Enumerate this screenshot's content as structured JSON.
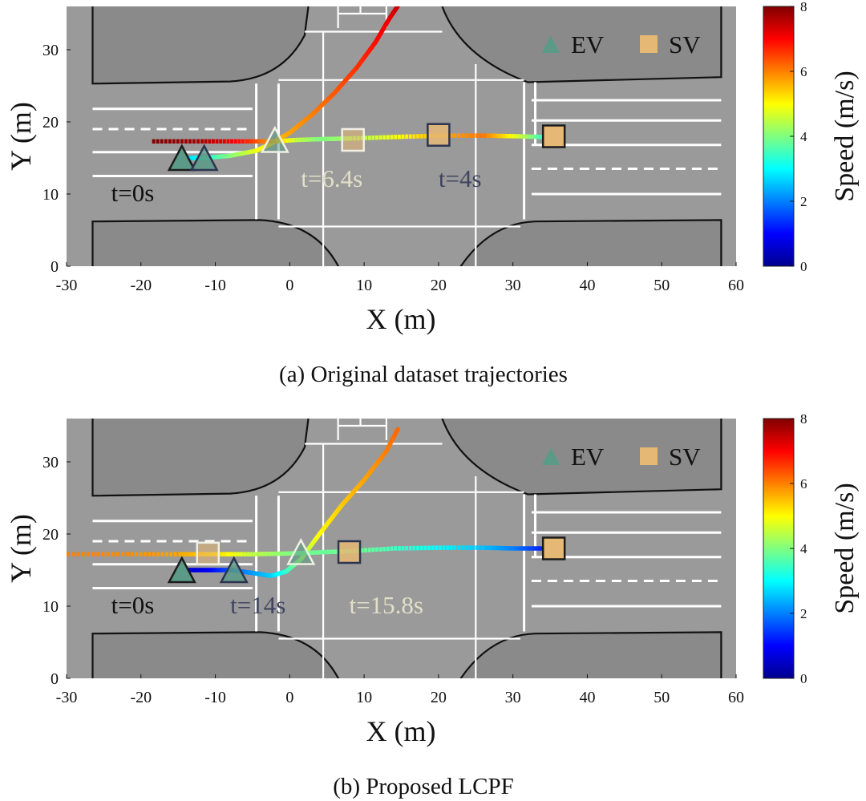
{
  "colors": {
    "road_bg": "#9a9a9a",
    "lane_line": "#ffffff",
    "curb_line": "#111111",
    "ev_marker": "#5b9a86",
    "sv_marker": "#e5b875",
    "label_dark": "#3f4560",
    "label_light": "#e2e0c8",
    "label_black": "#111111"
  },
  "colorbar": {
    "label": "Speed (m/s)",
    "min": 0,
    "max": 8,
    "ticks": [
      "0",
      "2",
      "4",
      "6",
      "8"
    ]
  },
  "chart_data": [
    {
      "id": "a",
      "type": "scatter",
      "caption": "(a)  Original dataset trajectories",
      "xlabel": "X (m)",
      "ylabel": "Y (m)",
      "xlim": [
        -30,
        60
      ],
      "ylim": [
        0,
        36
      ],
      "xticks": [
        "-30",
        "-20",
        "-10",
        "0",
        "10",
        "20",
        "30",
        "40",
        "50",
        "60"
      ],
      "yticks": [
        "0",
        "10",
        "20",
        "30"
      ],
      "legend": [
        {
          "label": "EV",
          "marker": "triangle"
        },
        {
          "label": "SV",
          "marker": "square"
        }
      ],
      "legend_position": "top-right",
      "trajectories": [
        {
          "name": "EV",
          "style": "solid",
          "points": [
            [
              -14,
              15,
              2.5
            ],
            [
              -11.5,
              15,
              3.2
            ],
            [
              -8,
              15.3,
              4.0
            ],
            [
              -4.5,
              16,
              4.8
            ],
            [
              -2.5,
              17,
              5.4
            ],
            [
              0,
              18.5,
              5.7
            ],
            [
              3,
              21,
              6.0
            ],
            [
              6,
              24,
              6.3
            ],
            [
              9,
              27.5,
              6.6
            ],
            [
              11.5,
              31,
              6.9
            ],
            [
              13.5,
              34.5,
              7.2
            ],
            [
              14.5,
              36,
              7.4
            ]
          ]
        },
        {
          "name": "SV",
          "style": "dotted",
          "points": [
            [
              -18.5,
              17.3,
              8.0
            ],
            [
              -12,
              17.3,
              7.7
            ],
            [
              -6,
              17.3,
              6.8
            ],
            [
              -2,
              17.3,
              5.6
            ],
            [
              1,
              17.5,
              4.5
            ],
            [
              4,
              17.6,
              4.0
            ],
            [
              8,
              17.7,
              4.3
            ],
            [
              14,
              17.9,
              4.9
            ],
            [
              20,
              18.1,
              5.6
            ],
            [
              26,
              18.1,
              6.1
            ],
            [
              31,
              18.0,
              4.6
            ],
            [
              34,
              17.9,
              3.4
            ]
          ]
        }
      ],
      "markers": [
        {
          "vehicle": "EV",
          "x": -14.5,
          "y": 15,
          "style": "dark"
        },
        {
          "vehicle": "EV",
          "x": -11.5,
          "y": 15,
          "style": "medium"
        },
        {
          "vehicle": "EV",
          "x": -2,
          "y": 17.5,
          "style": "light"
        },
        {
          "vehicle": "SV",
          "x": 35.5,
          "y": 18,
          "style": "dark"
        },
        {
          "vehicle": "SV",
          "x": 20,
          "y": 18.2,
          "style": "medium"
        },
        {
          "vehicle": "SV",
          "x": 8.5,
          "y": 17.5,
          "style": "light"
        }
      ],
      "annotations": [
        {
          "text": "t=0s",
          "x": -24,
          "y": 9,
          "color": "label_black"
        },
        {
          "text": "t=6.4s",
          "x": 1.5,
          "y": 11,
          "color": "label_light"
        },
        {
          "text": "t=4s",
          "x": 20,
          "y": 11,
          "color": "label_dark"
        }
      ]
    },
    {
      "id": "b",
      "type": "scatter",
      "caption": "(b)  Proposed LCPF",
      "xlabel": "X (m)",
      "ylabel": "Y (m)",
      "xlim": [
        -30,
        60
      ],
      "ylim": [
        0,
        36
      ],
      "xticks": [
        "-30",
        "-20",
        "-10",
        "0",
        "10",
        "20",
        "30",
        "40",
        "50",
        "60"
      ],
      "yticks": [
        "0",
        "10",
        "20",
        "30"
      ],
      "legend": [
        {
          "label": "EV",
          "marker": "triangle"
        },
        {
          "label": "SV",
          "marker": "square"
        }
      ],
      "legend_position": "top-right",
      "trajectories": [
        {
          "name": "EV",
          "style": "solid",
          "points": [
            [
              -14,
              15,
              0.6
            ],
            [
              -11,
              15,
              0.9
            ],
            [
              -8,
              15,
              1.6
            ],
            [
              -5,
              14.6,
              2.2
            ],
            [
              -2.5,
              14.2,
              2.6
            ],
            [
              -0.5,
              14.8,
              3.3
            ],
            [
              1.5,
              16.5,
              4.2
            ],
            [
              4,
              20,
              5.0
            ],
            [
              7,
              24,
              5.4
            ],
            [
              10,
              27.5,
              5.7
            ],
            [
              13,
              31.5,
              6.0
            ],
            [
              14.5,
              34.5,
              6.2
            ]
          ]
        },
        {
          "name": "SV",
          "style": "dotted",
          "points": [
            [
              -30,
              17.2,
              6.0
            ],
            [
              -22,
              17.2,
              5.9
            ],
            [
              -15,
              17.2,
              5.7
            ],
            [
              -10,
              17.2,
              5.3
            ],
            [
              -5,
              17.2,
              4.5
            ],
            [
              0,
              17.3,
              4.0
            ],
            [
              5,
              17.5,
              3.8
            ],
            [
              8,
              17.6,
              4.0
            ],
            [
              14,
              18,
              3.5
            ],
            [
              20,
              18.1,
              3.0
            ],
            [
              26,
              18.1,
              2.5
            ],
            [
              30,
              18,
              2.0
            ],
            [
              34,
              18,
              1.2
            ]
          ]
        }
      ],
      "markers": [
        {
          "vehicle": "EV",
          "x": -14.5,
          "y": 15,
          "style": "dark"
        },
        {
          "vehicle": "EV",
          "x": -7.5,
          "y": 15,
          "style": "medium"
        },
        {
          "vehicle": "EV",
          "x": 1.5,
          "y": 17.5,
          "style": "light"
        },
        {
          "vehicle": "SV",
          "x": 35.5,
          "y": 18,
          "style": "dark"
        },
        {
          "vehicle": "SV",
          "x": 8,
          "y": 17.5,
          "style": "medium"
        },
        {
          "vehicle": "SV",
          "x": -11,
          "y": 17.3,
          "style": "light"
        }
      ],
      "annotations": [
        {
          "text": "t=0s",
          "x": -24,
          "y": 9,
          "color": "label_black"
        },
        {
          "text": "t=14s",
          "x": -8,
          "y": 9,
          "color": "label_dark"
        },
        {
          "text": "t=15.8s",
          "x": 8,
          "y": 9,
          "color": "label_light"
        }
      ]
    }
  ]
}
